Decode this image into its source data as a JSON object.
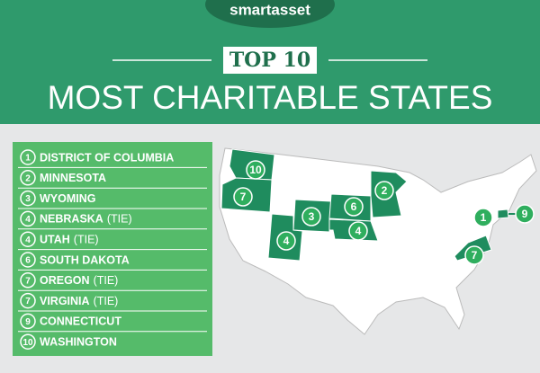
{
  "header": {
    "logo": "smartasset",
    "badge": "TOP 10",
    "title": "MOST CHARITABLE STATES"
  },
  "list": [
    {
      "rank": 1,
      "name": "DISTRICT OF COLUMBIA"
    },
    {
      "rank": 2,
      "name": "MINNESOTA"
    },
    {
      "rank": 3,
      "name": "WYOMING"
    },
    {
      "rank": 4,
      "name": "NEBRASKA",
      "note": "(TIE)"
    },
    {
      "rank": 4,
      "name": "UTAH",
      "note": "(TIE)"
    },
    {
      "rank": 6,
      "name": "SOUTH DAKOTA"
    },
    {
      "rank": 7,
      "name": "OREGON",
      "note": "(TIE)"
    },
    {
      "rank": 7,
      "name": "VIRGINIA",
      "note": "(TIE)"
    },
    {
      "rank": 9,
      "name": "CONNECTICUT"
    },
    {
      "rank": 10,
      "name": "WASHINGTON"
    }
  ]
}
